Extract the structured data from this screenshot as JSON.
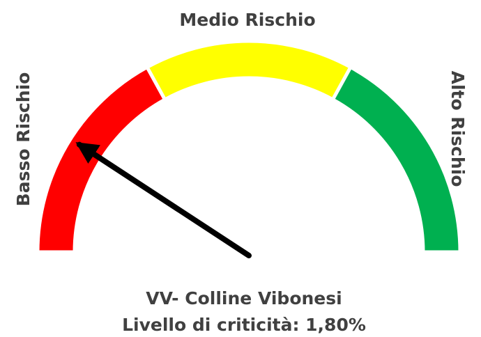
{
  "chart_data": {
    "type": "gauge",
    "title": "VV- Colline Vibonesi",
    "value": 1.8,
    "value_label": "Livello di criticità: 1,80%",
    "ylim": [
      0,
      10
    ],
    "segments": [
      {
        "name": "Basso Rischio",
        "color": "#ff0000",
        "from": 0,
        "to": 3.4
      },
      {
        "name": "Medio Rischio",
        "color": "#ffff00",
        "from": 3.4,
        "to": 6.6
      },
      {
        "name": "Alto Rischio",
        "color": "#00b050",
        "from": 6.6,
        "to": 10
      }
    ],
    "needle_color": "#000000"
  }
}
